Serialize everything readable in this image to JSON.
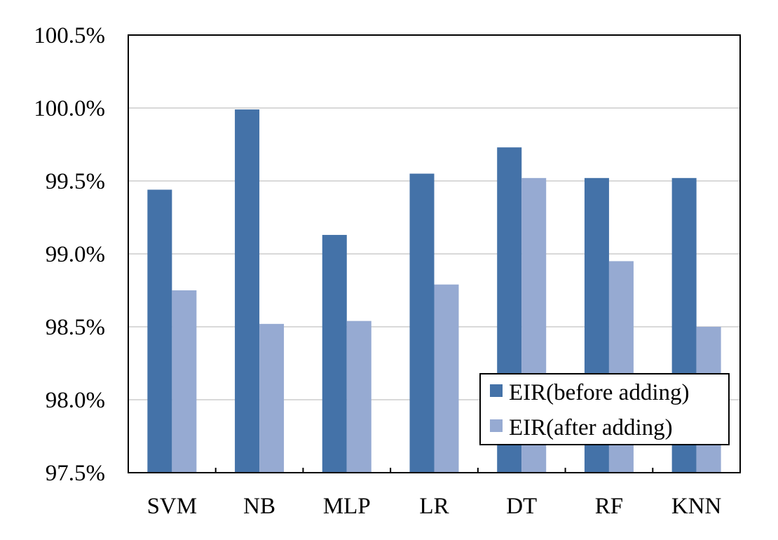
{
  "chart_data": {
    "type": "bar",
    "title": "",
    "xlabel": "",
    "ylabel": "",
    "categories": [
      "SVM",
      "NB",
      "MLP",
      "LR",
      "DT",
      "RF",
      "KNN"
    ],
    "series": [
      {
        "name": "EIR(before adding)",
        "color": "#4472a8",
        "values": [
          99.44,
          99.99,
          99.13,
          99.55,
          99.73,
          99.52,
          99.52
        ]
      },
      {
        "name": "EIR(after adding)",
        "color": "#96aad2",
        "values": [
          98.75,
          98.52,
          98.54,
          98.79,
          99.52,
          98.95,
          98.5
        ]
      }
    ],
    "ylim": [
      97.5,
      100.5
    ],
    "yticks": [
      97.5,
      98.0,
      98.5,
      99.0,
      99.5,
      100.0,
      100.5
    ],
    "ytick_labels": [
      "97.5%",
      "98.0%",
      "98.5%",
      "99.0%",
      "99.5%",
      "100.0%",
      "100.5%"
    ],
    "grid": true,
    "legend": "bottom-right"
  }
}
